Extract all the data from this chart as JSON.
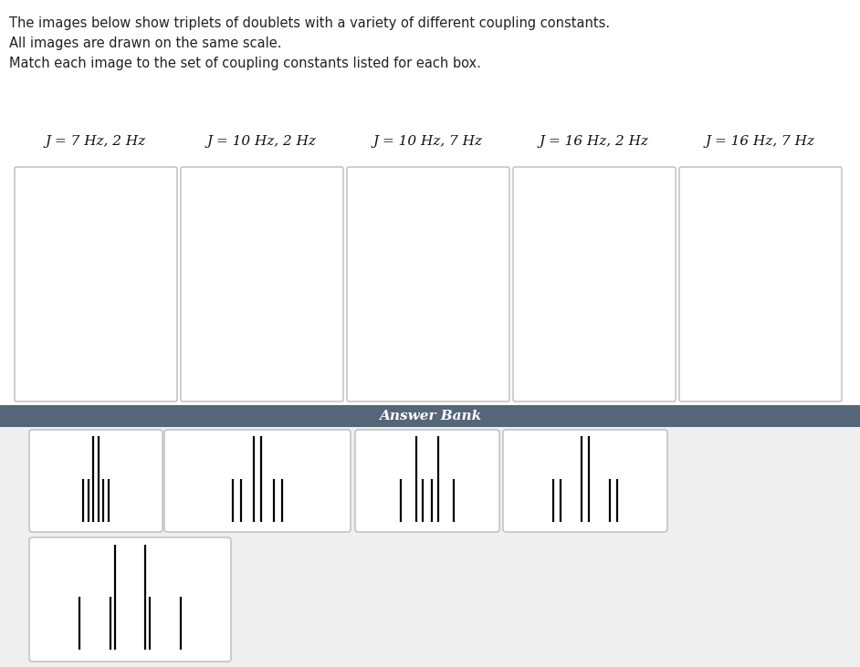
{
  "text_lines": [
    "The images below show triplets of doublets with a variety of different coupling constants.",
    "All images are drawn on the same scale.",
    "Match each image to the set of coupling constants listed for each box."
  ],
  "box_labels": [
    "J = 7 Hz, 2 Hz",
    "J = 10 Hz, 2 Hz",
    "J = 10 Hz, 7 Hz",
    "J = 16 Hz, 2 Hz",
    "J = 16 Hz, 7 Hz"
  ],
  "answer_bank_label": "Answer Bank",
  "answer_bank_bg": "#546778",
  "answer_bank_text_color": "#ffffff",
  "panel_bg": "#efefef",
  "box_edge_color": "#bbbbbb",
  "answer_spectra": [
    {
      "J1": 7,
      "J2": 2,
      "comment": "7Hz,2Hz"
    },
    {
      "J1": 10,
      "J2": 2,
      "comment": "10Hz,2Hz"
    },
    {
      "J1": 10,
      "J2": 7,
      "comment": "10Hz,7Hz"
    },
    {
      "J1": 16,
      "J2": 2,
      "comment": "16Hz,2Hz"
    },
    {
      "J1": 16,
      "J2": 7,
      "comment": "16Hz,7Hz"
    }
  ],
  "scale_hz": 19,
  "line_color": "#000000",
  "fig_bg": "#ffffff",
  "text_fontsize": 10.5,
  "label_fontsize": 11
}
